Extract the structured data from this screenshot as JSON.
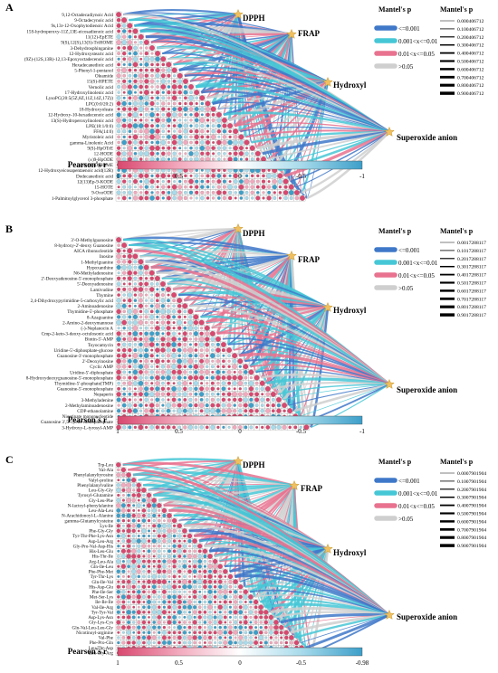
{
  "colors": {
    "strong_positive": "#d9486f",
    "mid_positive": "#f2a9bd",
    "strong_negative": "#3d9fc9",
    "mid_negative": "#a8dbeb",
    "p_lt_001": "#3f78c9",
    "p_001_01": "#46c7d6",
    "p_01_05": "#e8728f",
    "p_gt_05": "#cfcfcf",
    "star": "#f0c060"
  },
  "legend": {
    "mantel_title": "Mantel's p",
    "p_labels": [
      "<=0.001",
      "0.001<x<=0.01",
      "0.01<x<=0.05",
      ">0.05"
    ],
    "pearson_title": "Pearson's r"
  },
  "chart_data": [
    {
      "type": "heatmap",
      "panel": "A",
      "targets": [
        "DPPH",
        "FRAP",
        "Hydroxyl",
        "Superoxide anion"
      ],
      "categories": [
        "9,12-Octadecadiynoic Acid",
        "9-Octadecynoic acid",
        "9s,13r-12-Oxophytodienoic Acid",
        "15S-hydroperoxy-11Z,13E-eicosadienoic acid",
        "11(12)-EpETE",
        "9(S),12(S),13(S)-TriHOME",
        "3-Dehydrosphinganine",
        "12-Hydroxystearic acid",
        "(9Z)-(12S,13R)-12,13-Epoxyoctadecenoic acid",
        "Hexadecanedioic acid",
        "5-Phenyl-1-pentanol",
        "Oleamide",
        "15(S)-HPETE",
        "Vernolic acid",
        "17-Hydroxylinolenic acid",
        "LysoPC(20:5(5Z,8Z,11Z,14Z,17Z))",
        "LPC(0:0/20:2)",
        "18-Hydroxyoleate",
        "12-Hydroxy-10-hexadecenoic acid",
        "13(S)-Hydroperoxylinolenic acid",
        "LPE(18:1/0:0)",
        "FFA(14:0)",
        "Myristoleic acid",
        "gamma-Linolenic Acid",
        "9(S)-HpOTrE",
        "12-HODE",
        "(±)9-HpODE",
        "(±)9(10)-DiHOME",
        "12-Hydroxyeicosapentaenoic acid(12R)",
        "Dodecanedioic acid",
        "12(13)Ep-9-KODE",
        "15-HOTE",
        "9-OxoODE",
        "1-Palmitoylglycerol 3-phosphate"
      ],
      "scale_ticks": [
        "1",
        "0.5",
        "0",
        "-0.5",
        "-1"
      ],
      "mantel_p_values": [
        "0.000406712",
        "0.100406712",
        "0.200406712",
        "0.300406712",
        "0.400406712",
        "0.500406712",
        "0.600406712",
        "0.700406712",
        "0.800406712",
        "0.900406712"
      ]
    },
    {
      "type": "heatmap",
      "panel": "B",
      "targets": [
        "DPPH",
        "FRAP",
        "Hydroxyl",
        "Superoxide anion"
      ],
      "categories": [
        "3'-O-Methylguanosine",
        "8-hydroxy-2'-deoxy Guanosine",
        "AICA ribonucleotide",
        "Inosine",
        "1-Methylguanine",
        "Hypoxanthine",
        "N6-Methyladenosine",
        "2'-Deoxyadenosine-5'-monophosphate",
        "5'-Deoxyadenosine",
        "Lamivudine",
        "Thymine",
        "2,4-Dihydroxypyrimidine-5-carboxylic acid",
        "2-Aminoadenosine",
        "Thymidine-5'-phosphate",
        "8-Azaguanine",
        "2-Amino-2-deoxymannose",
        "(-)-Neplanocin A",
        "Cmp-2-keto-3-deoxy-octulosonic acid",
        "Biotin-5'-AMP",
        "Toyocamycin",
        "Uridine-5'-diphosphate-glucose",
        "Guanosine-3'-monophosphate",
        "2'-Deoxyinosine",
        "Cyclic AMP",
        "Uridine-5'-diphosphate",
        "8-Hydroxydeoxyguanosine-5'-monophosphate",
        "Thymidine-5'-phosphate(TMP)",
        "Guanosine-5'-monophosphate",
        "Nepaperin",
        "3-Methyladenine",
        "2-Methylaminoadenosine",
        "CDP-ethanolamine",
        "Nicotinate mononucleotide",
        "Guanosine 3',5'-cyclic monophosphate",
        "3-Hydroxy-L-tyrosyl-AMP"
      ],
      "scale_ticks": [
        "1",
        "0.5",
        "0",
        "-0.5",
        "-1"
      ],
      "mantel_p_values": [
        "0.0017288117",
        "0.1017288117",
        "0.2017288117",
        "0.3017288117",
        "0.4017288117",
        "0.5017288117",
        "0.6017288117",
        "0.7017288117",
        "0.8017288117",
        "0.9017288117"
      ]
    },
    {
      "type": "heatmap",
      "panel": "C",
      "targets": [
        "DPPH",
        "FRAP",
        "Hydroxyl",
        "Superoxide anion"
      ],
      "categories": [
        "Trp-Leu",
        "Val-Ala",
        "Phenylalanyltyrosine",
        "Valyl-proline",
        "Phenylalanylvaline",
        "Leu-Gly-Gly",
        "Tyrosyl-Glutamine",
        "Gly-Leu-Phe",
        "N-lactoyl-phenylalanine",
        "Leu-Ala-Leu",
        "N-Arachidonoyl-L-Alanine",
        "gamma-Glutamylcysteine",
        "Lys-Ile",
        "Phe-Gly-Gly",
        "Tyr-Thr-Phe-Lys-Asn",
        "Asp-Leu-Arg",
        "Gly-Pro-Val-Asp-His",
        "His-Leu-Glu",
        "His-Thr-Ile",
        "Arg-Leu-Ala",
        "Gln-Ile-Leu",
        "Phe-Phe-Met",
        "Tyr-Thr-Lys",
        "Gln-Ile-Val",
        "His-Asp-Glu",
        "Phe-Ile-Ser",
        "Met-Ser-Lys",
        "Ile-Ile-Ile",
        "Val-Ile-Arg",
        "Tyr-Tyr-Val",
        "Asp-Lys-Asn",
        "Gly-Lys-Cys",
        "Gln-Val-Leu-Leu-Gly",
        "Nicotinoyl-arginine",
        "Val-Phe",
        "Phe-Pro-Gln",
        "Leu-Thr-Asp",
        "Leu-Gly-Arg"
      ],
      "scale_ticks": [
        "1",
        "0.5",
        "0",
        "-0.5",
        "-0.98"
      ],
      "mantel_p_values": [
        "0.0007901904",
        "0.1007901904",
        "0.2007901904",
        "0.3007901904",
        "0.4007901904",
        "0.5007901904",
        "0.6007901904",
        "0.7007901904",
        "0.8007901904",
        "0.9007901904"
      ]
    }
  ]
}
